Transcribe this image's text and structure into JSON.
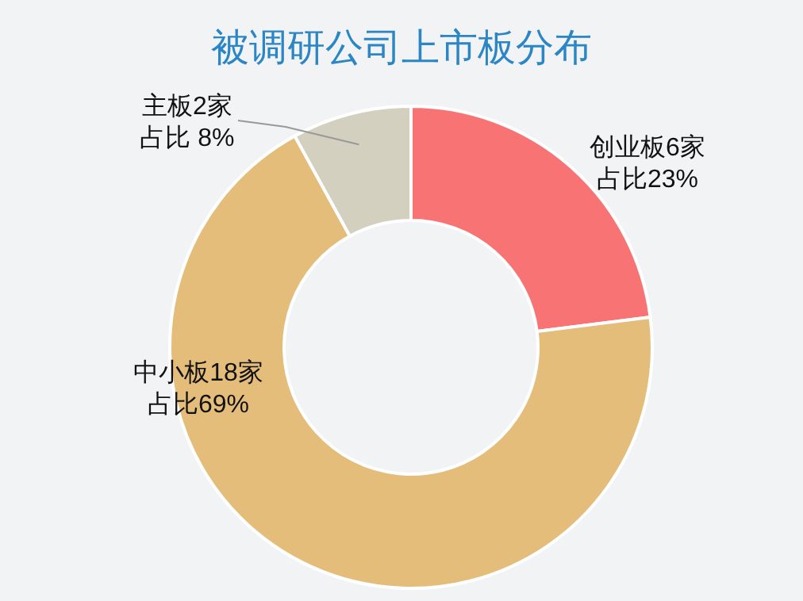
{
  "chart_data": {
    "type": "donut",
    "title": "被调研公司上市板分布",
    "categories": [
      "创业板6家",
      "中小板18家",
      "主板2家"
    ],
    "values": [
      23,
      69,
      8
    ],
    "value_labels": [
      "占比23%",
      "占比69%",
      "占比 8%"
    ],
    "colors": [
      "#f87474",
      "#e5bd7b",
      "#d3d0c0"
    ]
  }
}
